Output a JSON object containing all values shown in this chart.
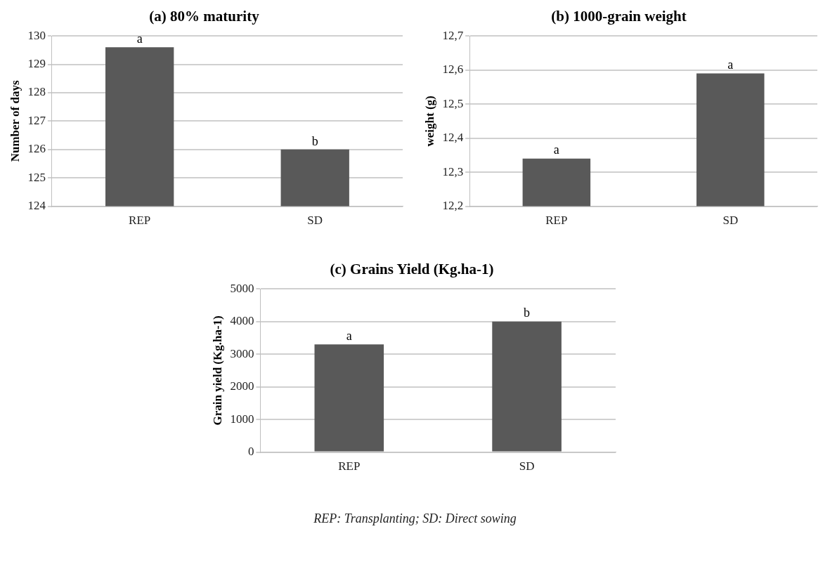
{
  "chart_data": [
    {
      "type": "bar",
      "title": "(a) 80% maturity",
      "ylabel": "Number of days",
      "categories": [
        "REP",
        "SD"
      ],
      "values": [
        129.6,
        126.0
      ],
      "color": "#595959",
      "ylim": [
        124,
        130
      ],
      "yticks": [
        124,
        125,
        126,
        127,
        128,
        129,
        130
      ],
      "grid": "y",
      "legend": false,
      "annotations": [
        {
          "text": "a",
          "x": "REP",
          "y": 129.6
        },
        {
          "text": "b",
          "x": "SD",
          "y": 126.0
        }
      ]
    },
    {
      "type": "bar",
      "title": "(b) 1000-grain weight",
      "ylabel": "weight (g)",
      "categories": [
        "REP",
        "SD"
      ],
      "values": [
        12.34,
        12.59
      ],
      "color": "#595959",
      "ylim": [
        12.2,
        12.7
      ],
      "yticks": [
        {
          "value": 12.2,
          "label": "12,2"
        },
        {
          "value": 12.3,
          "label": "12,3"
        },
        {
          "value": 12.4,
          "label": "12,4"
        },
        {
          "value": 12.5,
          "label": "12,5"
        },
        {
          "value": 12.6,
          "label": "12,6"
        },
        {
          "value": 12.7,
          "label": "12,7"
        }
      ],
      "grid": "y",
      "legend": false,
      "annotations": [
        {
          "text": "a",
          "x": "REP",
          "y": 12.34
        },
        {
          "text": "a",
          "x": "SD",
          "y": 12.59
        }
      ]
    },
    {
      "type": "bar",
      "title": "(c) Grains Yield (Kg.ha-1)",
      "ylabel": "Grain yield (Kg.ha-1)",
      "categories": [
        "REP",
        "SD"
      ],
      "values": [
        3300,
        4000
      ],
      "color": "#595959",
      "ylim": [
        0,
        5000
      ],
      "yticks": [
        0,
        1000,
        2000,
        3000,
        4000,
        5000
      ],
      "grid": "y",
      "legend": false,
      "annotations": [
        {
          "text": "a",
          "x": "REP",
          "y": 3300
        },
        {
          "text": "b",
          "x": "SD",
          "y": 4000
        },
        "REP: Transplanting; SD: Direct sowing"
      ]
    }
  ]
}
